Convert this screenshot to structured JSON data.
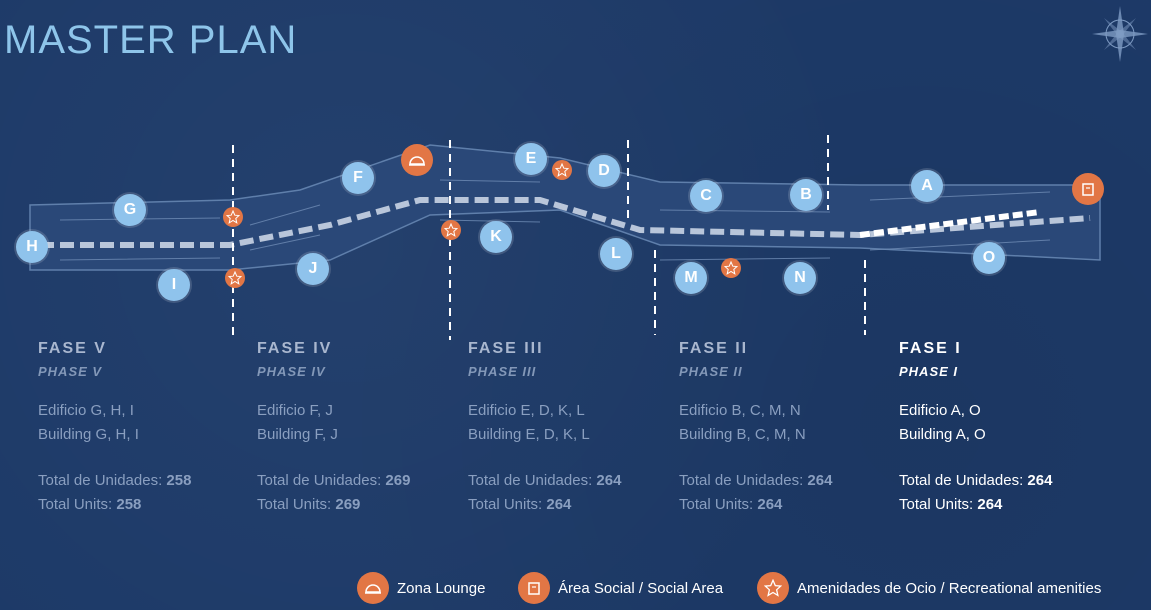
{
  "title": "MASTER PLAN",
  "colors": {
    "background": "#1d3a68",
    "building_marker": "#8fc3ec",
    "amenity": "#e27645",
    "title": "#8ec5ea"
  },
  "compass_icon": "compass-rose-icon",
  "markers": {
    "a": "A",
    "b": "B",
    "c": "C",
    "d": "D",
    "e": "E",
    "f": "F",
    "g": "G",
    "h": "H",
    "i": "I",
    "j": "J",
    "k": "K",
    "l": "L",
    "m": "M",
    "n": "N",
    "o": "O"
  },
  "phases": [
    {
      "title": "FASE V",
      "subtitle": "PHASE V",
      "edificio": "Edificio G, H, I",
      "building": "Building G, H, I",
      "units_es_label": "Total de Unidades:",
      "units_en_label": "Total Units:",
      "units": "258"
    },
    {
      "title": "FASE IV",
      "subtitle": "PHASE IV",
      "edificio": "Edificio F, J",
      "building": "Building F, J",
      "units_es_label": "Total de Unidades:",
      "units_en_label": "Total Units:",
      "units": "269"
    },
    {
      "title": "FASE III",
      "subtitle": "PHASE III",
      "edificio": "Edificio E, D, K, L",
      "building": "Building E, D, K, L",
      "units_es_label": "Total de Unidades:",
      "units_en_label": "Total Units:",
      "units": "264"
    },
    {
      "title": "FASE II",
      "subtitle": "PHASE II",
      "edificio": "Edificio B, C, M, N",
      "building": "Building B, C, M, N",
      "units_es_label": "Total de Unidades:",
      "units_en_label": "Total Units:",
      "units": "264"
    },
    {
      "title": "FASE I",
      "subtitle": "PHASE I",
      "edificio": "Edificio A, O",
      "building": "Building A, O",
      "units_es_label": "Total de Unidades:",
      "units_en_label": "Total Units:",
      "units": "264"
    }
  ],
  "legend": {
    "lounge": {
      "label": "Zona Lounge",
      "icon": "cloche-icon"
    },
    "social": {
      "label": "Área Social / Social Area",
      "icon": "building-icon"
    },
    "recreational": {
      "label": "Amenidades de Ocio / Recreational amenities",
      "icon": "star-icon"
    }
  }
}
